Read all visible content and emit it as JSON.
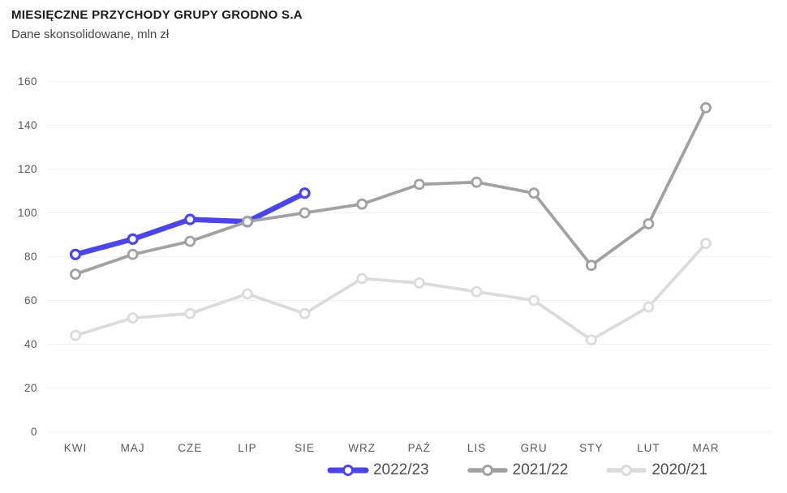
{
  "header": {
    "title": "MIESIĘCZNE PRZYCHODY GRUPY GRODNO S.A",
    "subtitle": "Dane skonsolidowane, mln zł"
  },
  "colors": {
    "grid": "#f0f0f0",
    "tick_text": "#595959",
    "title_text": "#1a1a1a",
    "subtitle_text": "#474747",
    "legend_text": "#4f4f4f",
    "accent_blue": "#4c46e8",
    "gray": "#a1a1a1",
    "light_gray": "#dbdbdb"
  },
  "chart_data": {
    "type": "line",
    "title": "MIESIĘCZNE PRZYCHODY GRUPY GRODNO S.A",
    "subtitle": "Dane skonsolidowane, mln zł",
    "categories": [
      "KWI",
      "MAJ",
      "CZE",
      "LIP",
      "SIE",
      "WRZ",
      "PAŹ",
      "LIS",
      "GRU",
      "STY",
      "LUT",
      "MAR"
    ],
    "series": [
      {
        "name": "2022/23",
        "color": "#4c46e8",
        "line_width": 6.5,
        "values": [
          81,
          88,
          97,
          96,
          109
        ]
      },
      {
        "name": "2021/22",
        "color": "#a1a1a1",
        "line_width": 3.8,
        "values": [
          72,
          81,
          87,
          96,
          100,
          104,
          113,
          114,
          109,
          76,
          95,
          148
        ]
      },
      {
        "name": "2020/21",
        "color": "#dbdbdb",
        "line_width": 3.8,
        "values": [
          44,
          52,
          54,
          63,
          54,
          70,
          68,
          64,
          60,
          42,
          57,
          86
        ]
      }
    ],
    "ylim": [
      0,
      160
    ],
    "ytick_step": 20,
    "yticks": [
      0,
      20,
      40,
      60,
      80,
      100,
      120,
      140,
      160
    ],
    "xlabel": "",
    "ylabel": "",
    "grid": true,
    "marker": "circle-open",
    "legend_position": "bottom-right"
  }
}
